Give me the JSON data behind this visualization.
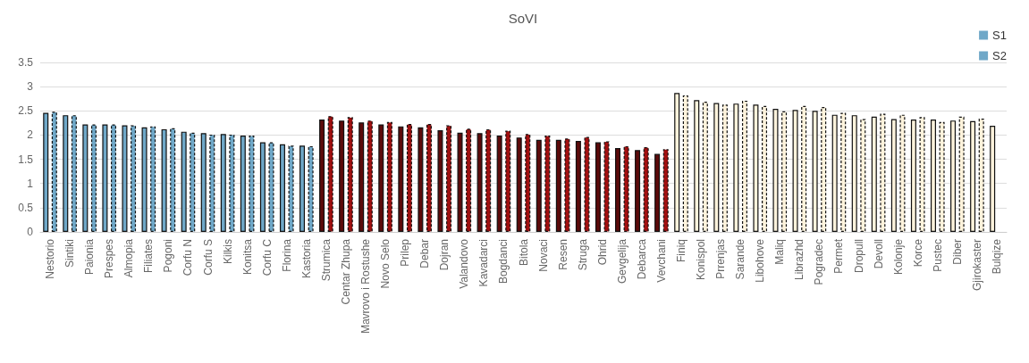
{
  "chart_data": {
    "type": "bar",
    "title": "SoVI",
    "categories": [
      "Nestorio",
      "Sintiki",
      "Paionia",
      "Prespes",
      "Almopia",
      "Filiates",
      "Pogoni",
      "Corfu N",
      "Corfu S",
      "Kilkis",
      "Konitsa",
      "Corfu C",
      "Florina",
      "Kastoria",
      "Strumica",
      "Centar Zhupa",
      "Mavrovo i Rostushe",
      "Novo Selo",
      "Prilep",
      "Debar",
      "Dojran",
      "Valandovo",
      "Kavadarci",
      "Bogdanci",
      "Bitola",
      "Novaci",
      "Resen",
      "Struga",
      "Ohrid",
      "Gevgelija",
      "Debarca",
      "Vevchani",
      "Finiq",
      "Konispol",
      "Prrenjas",
      "Sarande",
      "Libohove",
      "Maliq",
      "Librazhd",
      "Pogradec",
      "Permet",
      "Dropull",
      "Devoll",
      "Kolonje",
      "Korce",
      "Pustec",
      "Diber",
      "Gjirokaster",
      "Bulqize"
    ],
    "series": [
      {
        "name": "S1",
        "line_style": "solid",
        "colors": [
          "#6fa8c8",
          "#6fa8c8",
          "#6fa8c8",
          "#6fa8c8",
          "#6fa8c8",
          "#6fa8c8",
          "#6fa8c8",
          "#6fa8c8",
          "#6fa8c8",
          "#6fa8c8",
          "#6fa8c8",
          "#6fa8c8",
          "#6fa8c8",
          "#6fa8c8",
          "#5c0a0a",
          "#5c0a0a",
          "#5c0a0a",
          "#5c0a0a",
          "#5c0a0a",
          "#5c0a0a",
          "#5c0a0a",
          "#5c0a0a",
          "#5c0a0a",
          "#5c0a0a",
          "#5c0a0a",
          "#5c0a0a",
          "#5c0a0a",
          "#5c0a0a",
          "#5c0a0a",
          "#5c0a0a",
          "#5c0a0a",
          "#5c0a0a",
          "#fdf3dc",
          "#fdf3dc",
          "#fdf3dc",
          "#fdf3dc",
          "#fdf3dc",
          "#fdf3dc",
          "#fdf3dc",
          "#fdf3dc",
          "#fdf3dc",
          "#fdf3dc",
          "#fdf3dc",
          "#fdf3dc",
          "#fdf3dc",
          "#fdf3dc",
          "#fdf3dc",
          "#fdf3dc",
          "#fdf3dc"
        ],
        "values": [
          2.46,
          2.41,
          2.22,
          2.22,
          2.2,
          2.16,
          2.12,
          2.07,
          2.04,
          2.02,
          1.99,
          1.85,
          1.81,
          1.78,
          2.32,
          2.3,
          2.26,
          2.22,
          2.18,
          2.16,
          2.1,
          2.05,
          2.04,
          1.99,
          1.95,
          1.9,
          1.9,
          1.88,
          1.85,
          1.73,
          1.69,
          1.61,
          2.87,
          2.72,
          2.66,
          2.65,
          2.63,
          2.54,
          2.52,
          2.5,
          2.42,
          2.41,
          2.38,
          2.33,
          2.32,
          2.32,
          2.3,
          2.29,
          2.19
        ]
      },
      {
        "name": "S2",
        "line_style": "dashed",
        "colors": [
          "#6fa8c8",
          "#6fa8c8",
          "#6fa8c8",
          "#6fa8c8",
          "#6fa8c8",
          "#6fa8c8",
          "#6fa8c8",
          "#6fa8c8",
          "#6fa8c8",
          "#6fa8c8",
          "#6fa8c8",
          "#6fa8c8",
          "#6fa8c8",
          "#6fa8c8",
          "#a01010",
          "#a01010",
          "#a01010",
          "#a01010",
          "#a01010",
          "#a01010",
          "#a01010",
          "#a01010",
          "#a01010",
          "#a01010",
          "#a01010",
          "#a01010",
          "#a01010",
          "#a01010",
          "#a01010",
          "#a01010",
          "#a01010",
          "#a01010",
          "#fdf3dc",
          "#fdf3dc",
          "#fdf3dc",
          "#fdf3dc",
          "#fdf3dc",
          "#fdf3dc",
          "#fdf3dc",
          "#fdf3dc",
          "#fdf3dc",
          "#fdf3dc",
          "#fdf3dc",
          "#fdf3dc",
          "#fdf3dc",
          "#fdf3dc",
          "#fdf3dc",
          "#fdf3dc",
          "#fdf3dc"
        ],
        "values": [
          2.48,
          2.41,
          2.22,
          2.22,
          2.2,
          2.18,
          2.14,
          2.05,
          2.01,
          2.01,
          1.99,
          1.85,
          1.78,
          1.77,
          2.39,
          2.37,
          2.3,
          2.27,
          2.23,
          2.23,
          2.2,
          2.13,
          2.12,
          2.09,
          2.02,
          1.99,
          1.93,
          1.96,
          1.87,
          1.77,
          1.75,
          1.71,
          2.82,
          2.69,
          2.63,
          2.71,
          2.6,
          2.49,
          2.6,
          2.58,
          2.46,
          2.33,
          2.44,
          2.42,
          2.37,
          2.27,
          2.38,
          2.34,
          null
        ]
      }
    ],
    "ylim": [
      0,
      3.5
    ],
    "yticks": [
      0,
      0.5,
      1,
      1.5,
      2,
      2.5,
      3,
      3.5
    ],
    "grid": "y",
    "legend": "top right"
  }
}
